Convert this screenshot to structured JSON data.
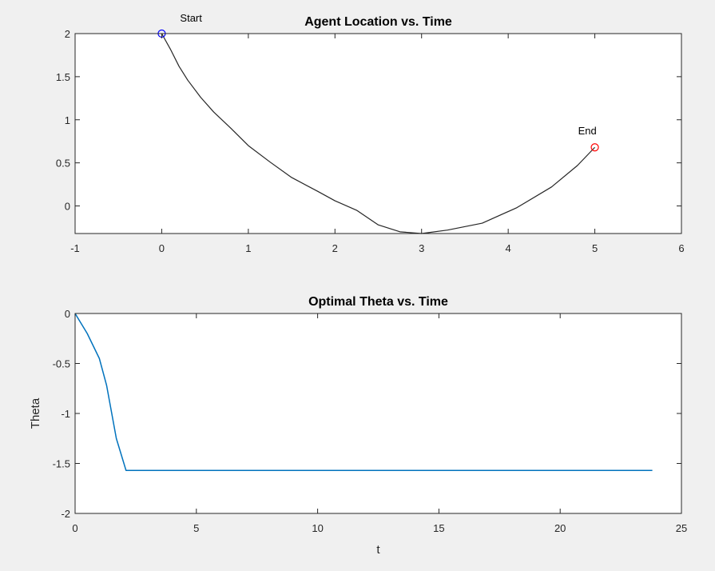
{
  "chart_data": [
    {
      "type": "line",
      "title": "Agent Location vs. Time",
      "xlabel": "",
      "ylabel": "",
      "xlim": [
        -1,
        6
      ],
      "ylim": [
        -0.32,
        2.0
      ],
      "xticks": [
        -1,
        0,
        1,
        2,
        3,
        4,
        5,
        6
      ],
      "yticks": [
        2,
        1.5,
        1,
        0.5,
        0
      ],
      "grid": false,
      "series": [
        {
          "name": "path",
          "color": "#262626",
          "x": [
            0.0,
            0.1,
            0.2,
            0.3,
            0.45,
            0.6,
            0.8,
            1.0,
            1.25,
            1.5,
            1.8,
            2.0,
            2.25,
            2.5,
            2.75,
            3.0,
            3.3,
            3.7,
            4.1,
            4.5,
            4.8,
            5.0
          ],
          "y": [
            2.0,
            1.82,
            1.62,
            1.46,
            1.26,
            1.09,
            0.9,
            0.7,
            0.51,
            0.33,
            0.17,
            0.06,
            -0.05,
            -0.22,
            -0.3,
            -0.32,
            -0.28,
            -0.2,
            -0.02,
            0.22,
            0.47,
            0.68
          ]
        }
      ],
      "markers": [
        {
          "label": "Start",
          "x": 0,
          "y": 2.0,
          "color": "#0000ff"
        },
        {
          "label": "End",
          "x": 5,
          "y": 0.68,
          "color": "#ff0000"
        }
      ]
    },
    {
      "type": "line",
      "title": "Optimal Theta vs. Time",
      "xlabel": "t",
      "ylabel": "Theta",
      "xlim": [
        0,
        25
      ],
      "ylim": [
        -2,
        0
      ],
      "xticks": [
        0,
        5,
        10,
        15,
        20,
        25
      ],
      "yticks": [
        0,
        -0.5,
        -1,
        -1.5,
        -2
      ],
      "grid": false,
      "series": [
        {
          "name": "theta",
          "color": "#0072bd",
          "x": [
            0,
            0.5,
            1.0,
            1.3,
            1.7,
            2.1,
            23.8
          ],
          "y": [
            0,
            -0.2,
            -0.45,
            -0.72,
            -1.25,
            -1.57,
            -1.57
          ]
        }
      ]
    }
  ]
}
